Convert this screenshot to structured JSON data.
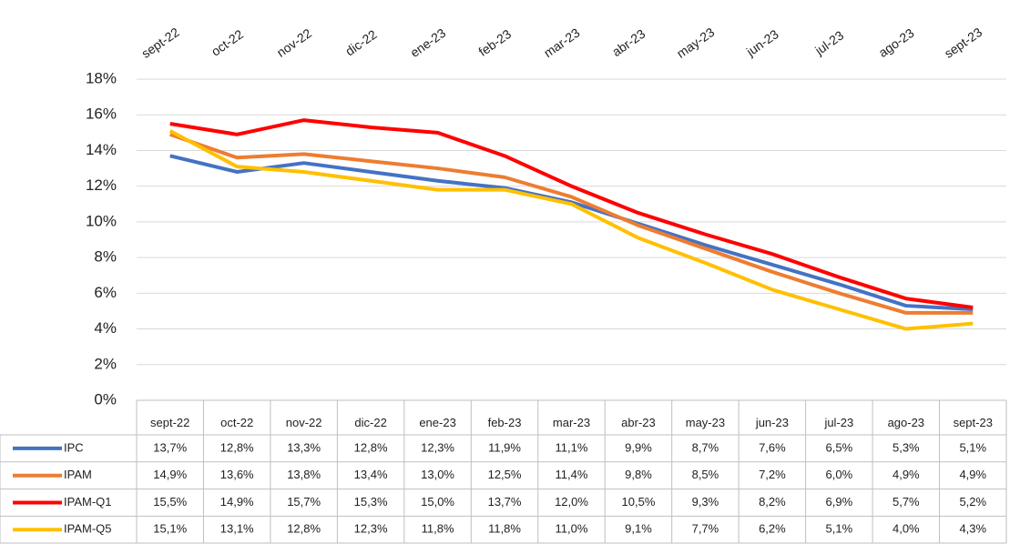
{
  "chart_data": {
    "type": "line",
    "categories": [
      "sept-22",
      "oct-22",
      "nov-22",
      "dic-22",
      "ene-23",
      "feb-23",
      "mar-23",
      "abr-23",
      "may-23",
      "jun-23",
      "jul-23",
      "ago-23",
      "sept-23"
    ],
    "ylim": [
      0,
      18
    ],
    "yticks": [
      {
        "value": 0,
        "label": "0%"
      },
      {
        "value": 2,
        "label": "2%"
      },
      {
        "value": 4,
        "label": "4%"
      },
      {
        "value": 6,
        "label": "6%"
      },
      {
        "value": 8,
        "label": "8%"
      },
      {
        "value": 10,
        "label": "10%"
      },
      {
        "value": 12,
        "label": "12%"
      },
      {
        "value": 14,
        "label": "14%"
      },
      {
        "value": 16,
        "label": "16%"
      },
      {
        "value": 18,
        "label": "18%"
      }
    ],
    "grid": true,
    "series": [
      {
        "name": "IPC",
        "color": "#4472c4",
        "values": [
          13.7,
          12.8,
          13.3,
          12.8,
          12.3,
          11.9,
          11.1,
          9.9,
          8.7,
          7.6,
          6.5,
          5.3,
          5.1
        ],
        "value_labels": [
          "13,7%",
          "12,8%",
          "13,3%",
          "12,8%",
          "12,3%",
          "11,9%",
          "11,1%",
          "9,9%",
          "8,7%",
          "7,6%",
          "6,5%",
          "5,3%",
          "5,1%"
        ]
      },
      {
        "name": "IPAM",
        "color": "#ed7d31",
        "values": [
          14.9,
          13.6,
          13.8,
          13.4,
          13.0,
          12.5,
          11.4,
          9.8,
          8.5,
          7.2,
          6.0,
          4.9,
          4.9
        ],
        "value_labels": [
          "14,9%",
          "13,6%",
          "13,8%",
          "13,4%",
          "13,0%",
          "12,5%",
          "11,4%",
          "9,8%",
          "8,5%",
          "7,2%",
          "6,0%",
          "4,9%",
          "4,9%"
        ]
      },
      {
        "name": "IPAM-Q1",
        "color": "#ff0000",
        "values": [
          15.5,
          14.9,
          15.7,
          15.3,
          15.0,
          13.7,
          12.0,
          10.5,
          9.3,
          8.2,
          6.9,
          5.7,
          5.2
        ],
        "value_labels": [
          "15,5%",
          "14,9%",
          "15,7%",
          "15,3%",
          "15,0%",
          "13,7%",
          "12,0%",
          "10,5%",
          "9,3%",
          "8,2%",
          "6,9%",
          "5,7%",
          "5,2%"
        ]
      },
      {
        "name": "IPAM-Q5",
        "color": "#ffc000",
        "values": [
          15.1,
          13.1,
          12.8,
          12.3,
          11.8,
          11.8,
          11.0,
          9.1,
          7.7,
          6.2,
          5.1,
          4.0,
          4.3
        ],
        "value_labels": [
          "15,1%",
          "13,1%",
          "12,8%",
          "12,3%",
          "11,8%",
          "11,8%",
          "11,0%",
          "9,1%",
          "7,7%",
          "6,2%",
          "5,1%",
          "4,0%",
          "4,3%"
        ]
      }
    ]
  }
}
